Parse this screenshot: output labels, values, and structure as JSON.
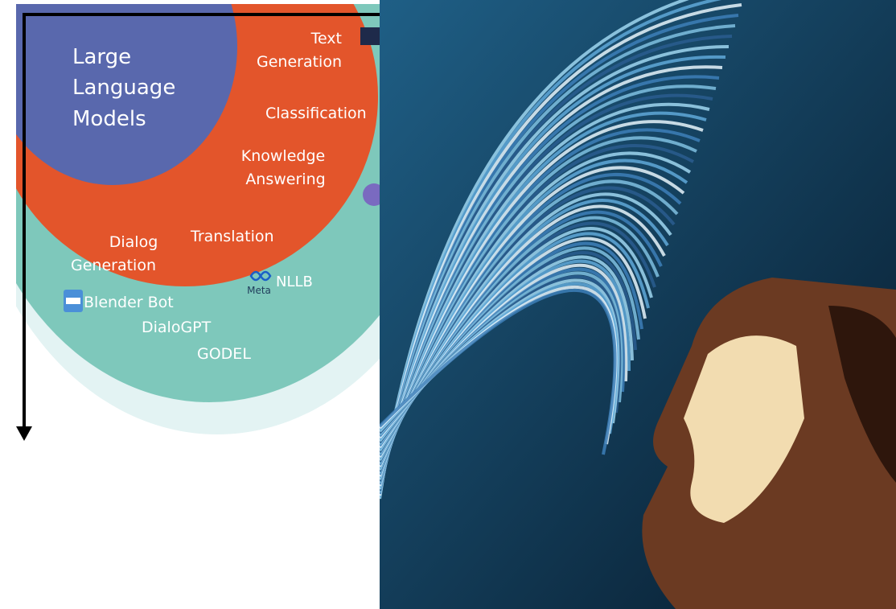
{
  "diagram": {
    "core": {
      "lines": [
        "Large",
        "Language",
        "Models"
      ]
    },
    "tasks": [
      {
        "lines": [
          "Text",
          "Generation"
        ]
      },
      {
        "lines": [
          "Classification"
        ]
      },
      {
        "lines": [
          "Knowledge",
          "Answering"
        ]
      },
      {
        "lines": [
          "Translation"
        ]
      },
      {
        "lines": [
          "Dialog",
          "Generation"
        ]
      }
    ],
    "models": [
      {
        "name": "NLLB",
        "brand": "Meta"
      },
      {
        "name": "Blender Bot"
      },
      {
        "name": "DialoGPT"
      },
      {
        "name": "GODEL"
      }
    ]
  }
}
